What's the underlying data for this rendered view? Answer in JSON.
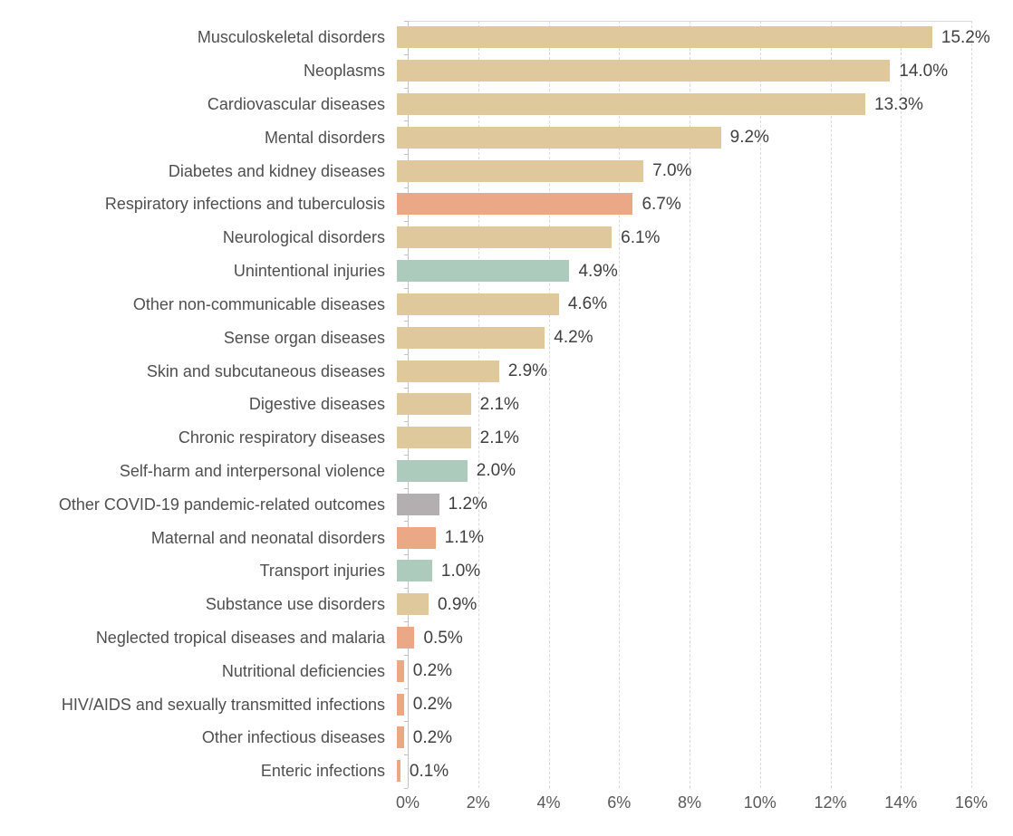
{
  "chart_data": {
    "type": "bar",
    "orientation": "horizontal",
    "title": "",
    "xlabel": "",
    "ylabel": "",
    "xlim": [
      0,
      16
    ],
    "x_tick_labels": [
      "0%",
      "2%",
      "4%",
      "6%",
      "8%",
      "10%",
      "12%",
      "14%",
      "16%"
    ],
    "x_tick_values": [
      0,
      2,
      4,
      6,
      8,
      10,
      12,
      14,
      16
    ],
    "grid": "vertical-dashed",
    "legend": "none",
    "palette": {
      "tan": "#dec89c",
      "salmon": "#eba886",
      "teal": "#accbbd",
      "gray": "#b3afb1"
    },
    "rows": [
      {
        "category": "Musculoskeletal disorders",
        "value": 15.2,
        "display": "15.2%",
        "color": "tan"
      },
      {
        "category": "Neoplasms",
        "value": 14.0,
        "display": "14.0%",
        "color": "tan"
      },
      {
        "category": "Cardiovascular diseases",
        "value": 13.3,
        "display": "13.3%",
        "color": "tan"
      },
      {
        "category": "Mental disorders",
        "value": 9.2,
        "display": "9.2%",
        "color": "tan"
      },
      {
        "category": "Diabetes and kidney diseases",
        "value": 7.0,
        "display": "7.0%",
        "color": "tan"
      },
      {
        "category": "Respiratory infections and tuberculosis",
        "value": 6.7,
        "display": "6.7%",
        "color": "salmon"
      },
      {
        "category": "Neurological disorders",
        "value": 6.1,
        "display": "6.1%",
        "color": "tan"
      },
      {
        "category": "Unintentional injuries",
        "value": 4.9,
        "display": "4.9%",
        "color": "teal"
      },
      {
        "category": "Other non-communicable diseases",
        "value": 4.6,
        "display": "4.6%",
        "color": "tan"
      },
      {
        "category": "Sense organ diseases",
        "value": 4.2,
        "display": "4.2%",
        "color": "tan"
      },
      {
        "category": "Skin and subcutaneous diseases",
        "value": 2.9,
        "display": "2.9%",
        "color": "tan"
      },
      {
        "category": "Digestive diseases",
        "value": 2.1,
        "display": "2.1%",
        "color": "tan"
      },
      {
        "category": "Chronic respiratory diseases",
        "value": 2.1,
        "display": "2.1%",
        "color": "tan"
      },
      {
        "category": "Self-harm and interpersonal violence",
        "value": 2.0,
        "display": "2.0%",
        "color": "teal"
      },
      {
        "category": "Other COVID-19 pandemic-related outcomes",
        "value": 1.2,
        "display": "1.2%",
        "color": "gray"
      },
      {
        "category": "Maternal and neonatal disorders",
        "value": 1.1,
        "display": "1.1%",
        "color": "salmon"
      },
      {
        "category": "Transport injuries",
        "value": 1.0,
        "display": "1.0%",
        "color": "teal"
      },
      {
        "category": "Substance use disorders",
        "value": 0.9,
        "display": "0.9%",
        "color": "tan"
      },
      {
        "category": "Neglected tropical diseases and malaria",
        "value": 0.5,
        "display": "0.5%",
        "color": "salmon"
      },
      {
        "category": "Nutritional deficiencies",
        "value": 0.2,
        "display": "0.2%",
        "color": "salmon"
      },
      {
        "category": "HIV/AIDS and sexually transmitted infections",
        "value": 0.2,
        "display": "0.2%",
        "color": "salmon"
      },
      {
        "category": "Other infectious diseases",
        "value": 0.2,
        "display": "0.2%",
        "color": "salmon"
      },
      {
        "category": "Enteric infections",
        "value": 0.1,
        "display": "0.1%",
        "color": "salmon"
      }
    ]
  }
}
